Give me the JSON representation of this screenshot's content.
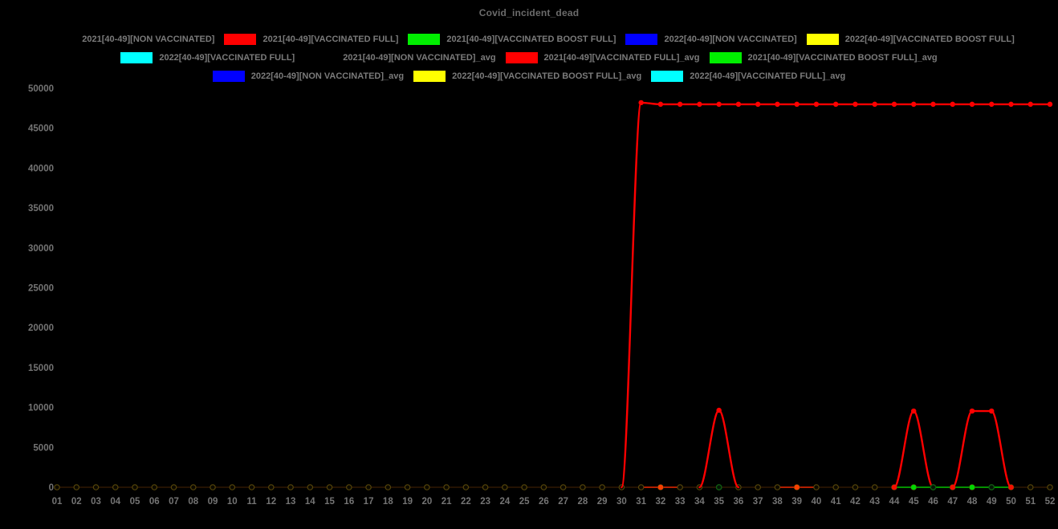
{
  "chart_data": {
    "type": "line",
    "title": "Covid_incident_dead",
    "background": "#000000",
    "grid": false,
    "legend_position": "top",
    "ylim": [
      0,
      50000
    ],
    "y_ticks": [
      0,
      5000,
      10000,
      15000,
      20000,
      25000,
      30000,
      35000,
      40000,
      45000,
      50000
    ],
    "x_categories": [
      "01",
      "02",
      "03",
      "04",
      "05",
      "06",
      "07",
      "08",
      "09",
      "10",
      "11",
      "12",
      "13",
      "14",
      "15",
      "16",
      "17",
      "18",
      "19",
      "20",
      "21",
      "22",
      "23",
      "24",
      "25",
      "26",
      "27",
      "28",
      "29",
      "30",
      "31",
      "32",
      "33",
      "34",
      "35",
      "36",
      "37",
      "38",
      "39",
      "40",
      "41",
      "42",
      "43",
      "44",
      "45",
      "46",
      "47",
      "48",
      "49",
      "50",
      "51",
      "52"
    ],
    "legend_rows": [
      [
        {
          "label": "2021[40-49][NON VACCINATED]",
          "color": "#000000"
        },
        {
          "label": "2021[40-49][VACCINATED FULL]",
          "color": "#ff0000"
        },
        {
          "label": "2021[40-49][VACCINATED BOOST FULL]",
          "color": "#00ee00"
        },
        {
          "label": "2022[40-49][NON VACCINATED]",
          "color": "#0000ff"
        },
        {
          "label": "2022[40-49][VACCINATED BOOST FULL]",
          "color": "#ffff00"
        }
      ],
      [
        {
          "label": "2022[40-49][VACCINATED FULL]",
          "color": "#00ffff"
        },
        {
          "label": "2021[40-49][NON VACCINATED]_avg",
          "color": "#000000"
        },
        {
          "label": "2021[40-49][VACCINATED FULL]_avg",
          "color": "#ff0000"
        },
        {
          "label": "2021[40-49][VACCINATED BOOST FULL]_avg",
          "color": "#00ee00"
        }
      ],
      [
        {
          "label": "2022[40-49][NON VACCINATED]_avg",
          "color": "#0000ff"
        },
        {
          "label": "2022[40-49][VACCINATED BOOST FULL]_avg",
          "color": "#ffff00"
        },
        {
          "label": "2022[40-49][VACCINATED FULL]_avg",
          "color": "#00ffff"
        }
      ]
    ],
    "series": [
      {
        "name": "2021[40-49][NON VACCINATED]",
        "color": "#000000",
        "values_constant": 0
      },
      {
        "name": "2021[40-49][VACCINATED FULL]",
        "color": "#ff0000",
        "values": [
          0,
          0,
          0,
          0,
          0,
          0,
          0,
          0,
          0,
          0,
          0,
          0,
          0,
          0,
          0,
          0,
          0,
          0,
          0,
          0,
          0,
          0,
          0,
          0,
          0,
          0,
          0,
          0,
          0,
          0,
          48200,
          48000,
          48000,
          48000,
          48000,
          48000,
          48000,
          48000,
          48000,
          48000,
          48000,
          48000,
          48000,
          48000,
          48000,
          48000,
          48000,
          48000,
          48000,
          48000,
          48000,
          48000
        ]
      },
      {
        "name": "2021[40-49][VACCINATED BOOST FULL]",
        "color": "#00ee00",
        "values_constant": 0
      },
      {
        "name": "2022[40-49][NON VACCINATED]",
        "color": "#0000ff",
        "values_constant": 0
      },
      {
        "name": "2022[40-49][VACCINATED BOOST FULL]",
        "color": "#ffff00",
        "values_constant": 0
      },
      {
        "name": "2022[40-49][VACCINATED FULL]",
        "color": "#00ffff",
        "values_constant": 0
      },
      {
        "name": "2021[40-49][NON VACCINATED]_avg",
        "color": "#000000",
        "values_constant": 0
      },
      {
        "name": "2021[40-49][VACCINATED FULL]_avg",
        "color": "#ff0000",
        "values": [
          0,
          0,
          0,
          0,
          0,
          0,
          0,
          0,
          0,
          0,
          0,
          0,
          0,
          0,
          0,
          0,
          0,
          0,
          0,
          0,
          0,
          0,
          0,
          0,
          0,
          0,
          0,
          0,
          0,
          0,
          0,
          0,
          0,
          0,
          9650,
          0,
          0,
          0,
          0,
          0,
          0,
          0,
          0,
          0,
          9550,
          0,
          0,
          9550,
          9550,
          0,
          0,
          0
        ]
      },
      {
        "name": "2021[40-49][VACCINATED BOOST FULL]_avg",
        "color": "#00ee00",
        "values_constant": 0
      },
      {
        "name": "2022[40-49][NON VACCINATED]_avg",
        "color": "#0000ff",
        "values_constant": 0
      },
      {
        "name": "2022[40-49][VACCINATED BOOST FULL]_avg",
        "color": "#ffff00",
        "values_constant": 0
      },
      {
        "name": "2022[40-49][VACCINATED FULL]_avg",
        "color": "#00ffff",
        "values_constant": 0
      }
    ],
    "zero_line_accents": {
      "red_dot_weeks": [
        32,
        39,
        44,
        47,
        50
      ],
      "green_dot_weeks": [
        45,
        48
      ],
      "dark_green_ring_weeks": [
        35,
        46,
        49
      ],
      "red_segments_weeks": [
        [
          31,
          33
        ],
        [
          38,
          40
        ]
      ],
      "green_segments_weeks": [
        [
          44,
          50
        ]
      ]
    },
    "colors": {
      "title_text": "#6b6b6b",
      "legend_text": "#7b7b7b",
      "axis_text": "#747474",
      "baseline": "#3a1c04",
      "baseline_ring_stroke": "#55450a",
      "baseline_ring_fill": "#0c0900",
      "accent_red_bright": "#f63f00",
      "accent_red": "#f31000",
      "accent_green": "#00d800",
      "accent_green_segment": "#00bf00",
      "accent_red_segment": "#e82600",
      "dark_green_ring": "#0e5c12"
    }
  }
}
